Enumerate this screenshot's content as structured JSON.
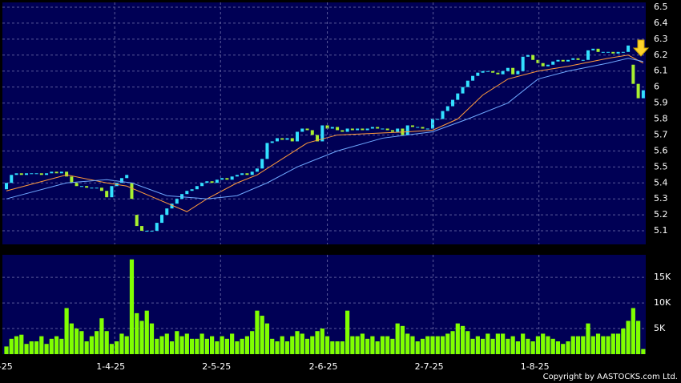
{
  "chart_data": [
    {
      "type": "candlestick",
      "xlim": [
        -0.8,
        127.5
      ],
      "ylim": [
        5.015,
        6.53
      ],
      "yticks": [
        6.5,
        6.4,
        6.3,
        6.2,
        6.1,
        6.0,
        5.9,
        5.8,
        5.7,
        5.6,
        5.5,
        5.4,
        5.3,
        5.2,
        5.1
      ],
      "xticks": [
        {
          "value": 0.6,
          "label": "-25"
        },
        {
          "value": 21.6,
          "label": "1-4-25"
        },
        {
          "value": 42.7,
          "label": "2-5-25"
        },
        {
          "value": 64,
          "label": "2-6-25"
        },
        {
          "value": 85.1,
          "label": "2-7-25"
        },
        {
          "value": 106.2,
          "label": "1-8-25"
        }
      ],
      "grid": true,
      "up_color": "#33e0ff",
      "down_color": "#a8f030",
      "open": [
        5.36,
        5.4,
        5.45,
        5.46,
        5.45,
        5.46,
        5.46,
        5.46,
        5.45,
        5.46,
        5.47,
        5.46,
        5.47,
        5.44,
        5.4,
        5.38,
        5.38,
        5.37,
        5.37,
        5.37,
        5.35,
        5.31,
        5.38,
        5.4,
        5.43,
        5.4,
        5.2,
        5.13,
        5.1,
        5.1,
        5.1,
        5.15,
        5.2,
        5.24,
        5.27,
        5.3,
        5.33,
        5.35,
        5.36,
        5.38,
        5.4,
        5.41,
        5.4,
        5.42,
        5.43,
        5.42,
        5.44,
        5.45,
        5.46,
        5.45,
        5.47,
        5.49,
        5.55,
        5.65,
        5.66,
        5.68,
        5.67,
        5.68,
        5.66,
        5.72,
        5.74,
        5.73,
        5.7,
        5.66,
        5.76,
        5.74,
        5.75,
        5.73,
        5.72,
        5.74,
        5.73,
        5.74,
        5.73,
        5.74,
        5.75,
        5.74,
        5.74,
        5.73,
        5.72,
        5.74,
        5.7,
        5.76,
        5.75,
        5.75,
        5.74,
        5.74,
        5.8,
        5.8,
        5.85,
        5.88,
        5.92,
        5.96,
        6.0,
        6.04,
        6.07,
        6.09,
        6.1,
        6.1,
        6.09,
        6.08,
        6.1,
        6.12,
        6.08,
        6.1,
        6.19,
        6.2,
        6.17,
        6.15,
        6.13,
        6.14,
        6.16,
        6.17,
        6.16,
        6.17,
        6.18,
        6.17,
        6.17,
        6.23,
        6.24,
        6.22,
        6.22,
        6.22,
        6.21,
        6.22,
        6.22,
        6.14,
        6.02,
        5.93
      ],
      "close": [
        5.4,
        5.45,
        5.46,
        5.45,
        5.46,
        5.46,
        5.46,
        5.45,
        5.46,
        5.47,
        5.46,
        5.47,
        5.44,
        5.4,
        5.38,
        5.38,
        5.37,
        5.37,
        5.37,
        5.35,
        5.31,
        5.38,
        5.4,
        5.43,
        5.45,
        5.3,
        5.13,
        5.1,
        5.1,
        5.1,
        5.15,
        5.2,
        5.24,
        5.27,
        5.3,
        5.33,
        5.35,
        5.36,
        5.38,
        5.4,
        5.41,
        5.4,
        5.42,
        5.43,
        5.42,
        5.44,
        5.45,
        5.46,
        5.45,
        5.47,
        5.49,
        5.55,
        5.65,
        5.66,
        5.68,
        5.67,
        5.68,
        5.66,
        5.72,
        5.74,
        5.73,
        5.7,
        5.66,
        5.76,
        5.74,
        5.75,
        5.73,
        5.72,
        5.74,
        5.73,
        5.74,
        5.73,
        5.74,
        5.75,
        5.74,
        5.74,
        5.73,
        5.72,
        5.74,
        5.7,
        5.76,
        5.75,
        5.75,
        5.74,
        5.74,
        5.8,
        5.8,
        5.85,
        5.88,
        5.92,
        5.96,
        6.0,
        6.04,
        6.07,
        6.09,
        6.1,
        6.1,
        6.09,
        6.08,
        6.1,
        6.12,
        6.08,
        6.1,
        6.19,
        6.2,
        6.17,
        6.15,
        6.13,
        6.14,
        6.16,
        6.17,
        6.16,
        6.17,
        6.18,
        6.17,
        6.17,
        6.23,
        6.24,
        6.22,
        6.22,
        6.22,
        6.21,
        6.22,
        6.22,
        6.26,
        6.02,
        5.93,
        5.98
      ],
      "lines": [
        {
          "color": "#ff9a3c",
          "x": [
            0,
            12,
            20,
            24,
            30,
            36,
            40,
            46,
            50,
            55,
            60,
            66,
            80,
            85,
            90,
            95,
            100,
            106,
            112,
            120,
            124,
            127
          ],
          "values": [
            5.35,
            5.45,
            5.4,
            5.38,
            5.3,
            5.22,
            5.3,
            5.4,
            5.45,
            5.55,
            5.65,
            5.7,
            5.72,
            5.73,
            5.8,
            5.95,
            6.05,
            6.1,
            6.13,
            6.18,
            6.2,
            6.15
          ]
        },
        {
          "color": "#6fa8ff",
          "x": [
            0,
            12,
            20,
            25,
            32,
            40,
            46,
            52,
            58,
            66,
            75,
            85,
            92,
            100,
            106,
            112,
            120,
            124,
            127
          ],
          "values": [
            5.3,
            5.4,
            5.42,
            5.4,
            5.32,
            5.3,
            5.32,
            5.4,
            5.5,
            5.6,
            5.68,
            5.72,
            5.8,
            5.9,
            6.05,
            6.1,
            6.15,
            6.18,
            6.16
          ]
        }
      ]
    },
    {
      "type": "bar",
      "xlim": [
        -0.8,
        127.5
      ],
      "ylim": [
        0,
        19400
      ],
      "yticks": [
        {
          "value": 15000,
          "label": "15K"
        },
        {
          "value": 10000,
          "label": "10K"
        },
        {
          "value": 5000,
          "label": "5K"
        }
      ],
      "grid": true,
      "color": "#80ff00",
      "values": [
        1500,
        3000,
        3500,
        3800,
        2000,
        2500,
        2500,
        3500,
        2000,
        3000,
        3500,
        3000,
        9000,
        6000,
        5000,
        4500,
        2500,
        3500,
        4500,
        7000,
        4500,
        2000,
        2500,
        4000,
        3500,
        18500,
        8000,
        6500,
        8500,
        6000,
        3000,
        3500,
        4000,
        2500,
        4500,
        3500,
        4000,
        3000,
        3000,
        4000,
        3000,
        3500,
        2500,
        3500,
        3000,
        4000,
        2500,
        3000,
        3500,
        4500,
        8500,
        7500,
        6000,
        3000,
        2500,
        3500,
        2500,
        3500,
        4500,
        4000,
        3000,
        3500,
        4500,
        5000,
        3500,
        2500,
        2500,
        2500,
        8500,
        3500,
        3500,
        4000,
        3000,
        3500,
        2500,
        3500,
        3500,
        3000,
        6000,
        5500,
        4000,
        3500,
        2500,
        3000,
        3500,
        3500,
        3500,
        3500,
        4000,
        4500,
        6000,
        5500,
        4500,
        3000,
        3500,
        3000,
        4000,
        3000,
        4000,
        4000,
        3000,
        3500,
        2500,
        4000,
        3000,
        2500,
        3500,
        4000,
        3500,
        3000,
        2500,
        2000,
        2500,
        3500,
        3500,
        3500,
        6000,
        3500,
        4000,
        3500,
        3500,
        4000,
        4000,
        5000,
        6500,
        9000,
        6500,
        1000
      ]
    }
  ],
  "copyright": "Copyright by AASTOCKS.com Ltd."
}
